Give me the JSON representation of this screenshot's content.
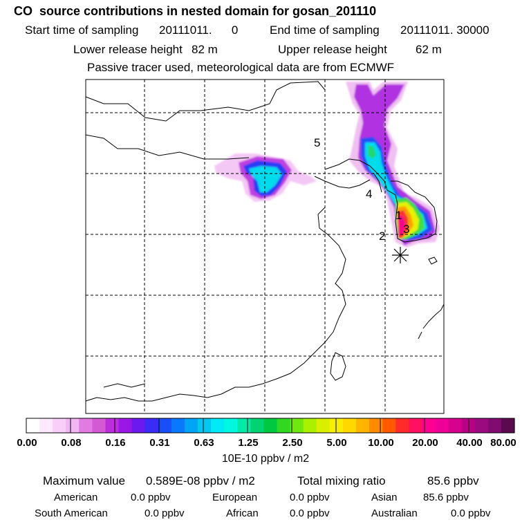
{
  "header": {
    "title": "CO  source contributions in nested domain for gosan_201110",
    "start_label": "Start time of sampling",
    "start_value": "20111011.      0",
    "end_label": "End time of sampling",
    "end_value": "20111011. 30000",
    "lower_label": "Lower release height",
    "lower_value": "82 m",
    "upper_label": "Upper release height",
    "upper_value": "62 m",
    "note": "Passive tracer used, meteorological data are from ECMWF"
  },
  "map": {
    "region_labels": [
      "5",
      "4",
      "1",
      "3",
      "2"
    ],
    "receptor_marker": "asterisk-icon"
  },
  "colorbar": {
    "colors": [
      "#ffffff",
      "#fde8fd",
      "#f8cff8",
      "#f2b6f2",
      "#e07be0",
      "#d45ad4",
      "#bb2ddd",
      "#9a18e6",
      "#6a1aee",
      "#3a2cf6",
      "#1a4ef9",
      "#0a78fa",
      "#00a4f5",
      "#00c8f0",
      "#00eaf5",
      "#00f8e0",
      "#00eaa8",
      "#00d470",
      "#00c840",
      "#30d820",
      "#70e810",
      "#aaf000",
      "#d8f000",
      "#f6f000",
      "#ffd800",
      "#ffb400",
      "#ff8c00",
      "#ff5a00",
      "#ff2a2a",
      "#ff1060",
      "#ff0090",
      "#ee0098",
      "#d8008f",
      "#bb0088",
      "#9c0a80",
      "#7f0c6e",
      "#5a0a4e"
    ],
    "tick_labels": [
      "0.00",
      "0.08",
      "0.16",
      "0.31",
      "0.63",
      "1.25",
      "2.50",
      "5.00",
      "10.00",
      "20.00",
      "40.00",
      "80.00"
    ],
    "unit": "10E-10 ppbv / m2"
  },
  "stats": {
    "max_label": "Maximum value",
    "max_value": "0.589E-08 ppbv / m2",
    "total_label": "Total mixing ratio",
    "total_value": "85.6 ppbv",
    "regions": [
      {
        "name": "American",
        "value": "0.0 ppbv"
      },
      {
        "name": "European",
        "value": "0.0 ppbv"
      },
      {
        "name": "Asian",
        "value": "85.6 ppbv"
      },
      {
        "name": "South American",
        "value": "0.0 ppbv"
      },
      {
        "name": "African",
        "value": "0.0 ppbv"
      },
      {
        "name": "Australian",
        "value": "0.0 ppbv"
      }
    ]
  }
}
